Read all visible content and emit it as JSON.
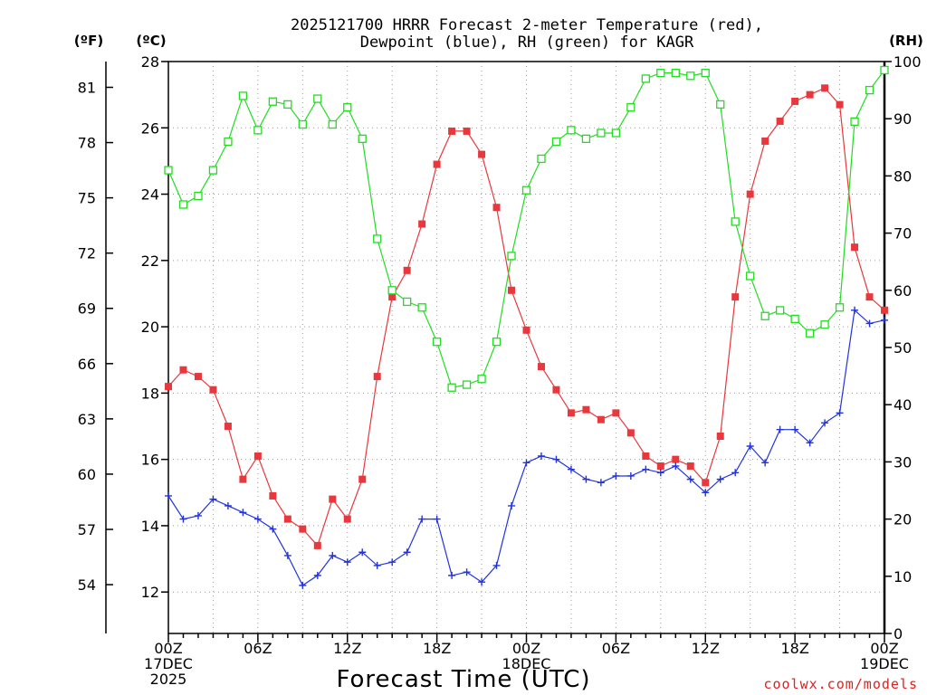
{
  "chart_data": {
    "type": "line",
    "title_lines": [
      "2025121700 HRRR Forecast 2-meter Temperature (red),",
      "Dewpoint (blue), RH (green) for KAGR"
    ],
    "xlabel": "Forecast Time (UTC)",
    "credit": "coolwx.com/models",
    "unit_labels": {
      "fahrenheit": "(ºF)",
      "celsius": "(ºC)",
      "rh": "(RH)"
    },
    "x": [
      0,
      1,
      2,
      3,
      4,
      5,
      6,
      7,
      8,
      9,
      10,
      11,
      12,
      13,
      14,
      15,
      16,
      17,
      18,
      19,
      20,
      21,
      22,
      23,
      24,
      25,
      26,
      27,
      28,
      29,
      30,
      31,
      32,
      33,
      34,
      35,
      36,
      37,
      38,
      39,
      40,
      41,
      42,
      43,
      44,
      45,
      46,
      47,
      48
    ],
    "x_ticks": [
      {
        "x": 0,
        "lines": [
          "00Z",
          "17DEC",
          "2025"
        ]
      },
      {
        "x": 6,
        "lines": [
          "06Z"
        ]
      },
      {
        "x": 12,
        "lines": [
          "12Z"
        ]
      },
      {
        "x": 18,
        "lines": [
          "18Z"
        ]
      },
      {
        "x": 24,
        "lines": [
          "00Z",
          "18DEC"
        ]
      },
      {
        "x": 30,
        "lines": [
          "06Z"
        ]
      },
      {
        "x": 36,
        "lines": [
          "12Z"
        ]
      },
      {
        "x": 42,
        "lines": [
          "18Z"
        ]
      },
      {
        "x": 48,
        "lines": [
          "00Z",
          "19DEC"
        ]
      }
    ],
    "x_range": [
      0,
      48
    ],
    "celsius_axis": {
      "range": [
        10.75,
        28.0
      ],
      "ticks": [
        12,
        14,
        16,
        18,
        20,
        22,
        24,
        26,
        28
      ]
    },
    "fahrenheit_axis": {
      "ticks": [
        54,
        57,
        60,
        63,
        66,
        69,
        72,
        75,
        78,
        81
      ]
    },
    "rh_axis": {
      "range": [
        0,
        100
      ],
      "ticks": [
        0,
        10,
        20,
        30,
        40,
        50,
        60,
        70,
        80,
        90,
        100
      ]
    },
    "grid": true,
    "series": [
      {
        "name": "Temperature",
        "axis": "celsius",
        "color": "#e8383d",
        "marker": "filled-square",
        "values": [
          18.2,
          18.7,
          18.5,
          18.1,
          17.0,
          15.4,
          16.1,
          14.9,
          14.2,
          13.9,
          13.4,
          14.8,
          14.2,
          15.4,
          18.5,
          20.9,
          21.7,
          23.1,
          24.9,
          25.9,
          25.9,
          25.2,
          23.6,
          21.1,
          19.9,
          18.8,
          18.1,
          17.4,
          17.5,
          17.2,
          17.4,
          16.8,
          16.1,
          15.8,
          16.0,
          15.8,
          15.3,
          16.7,
          20.9,
          24.0,
          25.6,
          26.2,
          26.8,
          27.0,
          27.2,
          26.7,
          22.4,
          20.9,
          20.5
        ]
      },
      {
        "name": "Dewpoint",
        "axis": "celsius",
        "color": "#2233dd",
        "marker": "plus",
        "values": [
          14.9,
          14.2,
          14.3,
          14.8,
          14.6,
          14.4,
          14.2,
          13.9,
          13.1,
          12.2,
          12.5,
          13.1,
          12.9,
          13.2,
          12.8,
          12.9,
          13.2,
          14.2,
          14.2,
          12.5,
          12.6,
          12.3,
          12.8,
          14.6,
          15.9,
          16.1,
          16.0,
          15.7,
          15.4,
          15.3,
          15.5,
          15.5,
          15.7,
          15.6,
          15.8,
          15.4,
          15.0,
          15.4,
          15.6,
          16.4,
          15.9,
          16.9,
          16.9,
          16.5,
          17.1,
          17.4,
          20.5,
          20.1,
          20.2
        ]
      },
      {
        "name": "RH",
        "axis": "rh",
        "color": "#22dd22",
        "marker": "open-square",
        "values": [
          81.0,
          75.0,
          76.5,
          81.0,
          86.0,
          94.0,
          88.0,
          93.0,
          92.5,
          89.0,
          93.5,
          89.0,
          92.0,
          86.5,
          69.0,
          60.0,
          58.0,
          57.0,
          51.0,
          43.0,
          43.5,
          44.5,
          51.0,
          66.0,
          77.5,
          83.0,
          86.0,
          88.0,
          86.5,
          87.5,
          87.5,
          92.0,
          97.0,
          98.0,
          98.0,
          97.5,
          98.0,
          92.5,
          72.0,
          62.5,
          55.5,
          56.5,
          55.0,
          52.5,
          54.0,
          57.0,
          89.5,
          95.0,
          98.5
        ]
      }
    ]
  }
}
